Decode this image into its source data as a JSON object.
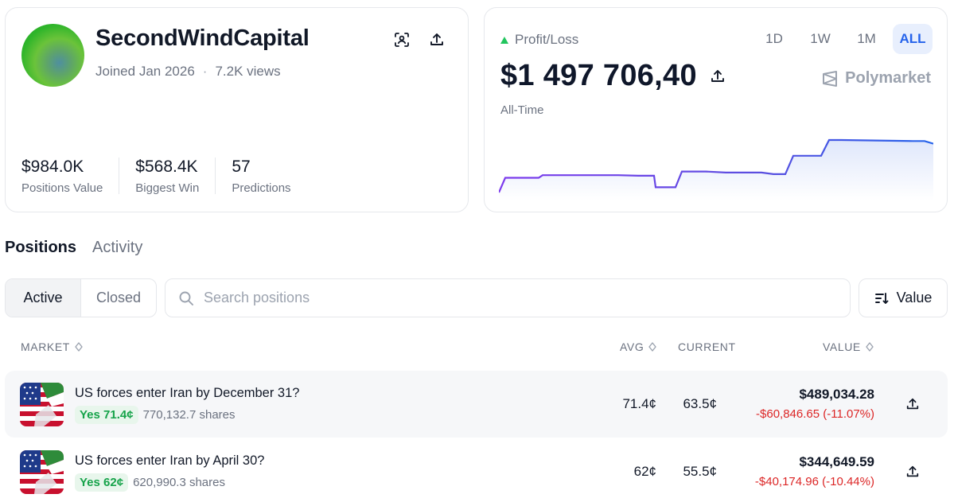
{
  "profile": {
    "name": "SecondWindCapital",
    "joined": "Joined Jan 2026",
    "separator": "·",
    "views": "7.2K views",
    "stats": [
      {
        "value": "$984.0K",
        "label": "Positions Value"
      },
      {
        "value": "$568.4K",
        "label": "Biggest Win"
      },
      {
        "value": "57",
        "label": "Predictions"
      }
    ]
  },
  "pnl": {
    "label": "Profit/Loss",
    "value": "$1 497 706,40",
    "period_label": "All-Time",
    "brand": "Polymarket",
    "ranges": [
      "1D",
      "1W",
      "1M",
      "ALL"
    ],
    "active_range": "ALL",
    "colors": {
      "line_start": "#7c3aed",
      "line_end": "#2563eb",
      "fill": "#e6ecfb",
      "up": "#22c55e"
    }
  },
  "chart_data": {
    "type": "area",
    "values": [
      0,
      0.28,
      0.28,
      0.33,
      0.33,
      0.32,
      0.32,
      0.1,
      0.1,
      0.4,
      0.4,
      0.38,
      0.38,
      0.35,
      0.35,
      0.7,
      0.7,
      1.0,
      1.0,
      0.98,
      0.98,
      0.93
    ],
    "title": "",
    "xlabel": "",
    "ylabel": ""
  },
  "tabs": {
    "positions": "Positions",
    "activity": "Activity",
    "active": "Positions"
  },
  "filter": {
    "active_label": "Active",
    "closed_label": "Closed"
  },
  "search": {
    "placeholder": "Search positions",
    "value": ""
  },
  "sort": {
    "label": "Value"
  },
  "table": {
    "headers": {
      "market": "MARKET",
      "avg": "AVG",
      "current": "CURRENT",
      "value": "VALUE"
    },
    "rows": [
      {
        "title": "US forces enter Iran by December 31?",
        "outcome": "Yes 71.4¢",
        "shares": "770,132.7 shares",
        "avg": "71.4¢",
        "current": "63.5¢",
        "value": "$489,034.28",
        "change": "-$60,846.65 (-11.07%)"
      },
      {
        "title": "US forces enter Iran by April 30?",
        "outcome": "Yes 62¢",
        "shares": "620,990.3 shares",
        "avg": "62¢",
        "current": "55.5¢",
        "value": "$344,649.59",
        "change": "-$40,174.96 (-10.44%)"
      }
    ]
  }
}
